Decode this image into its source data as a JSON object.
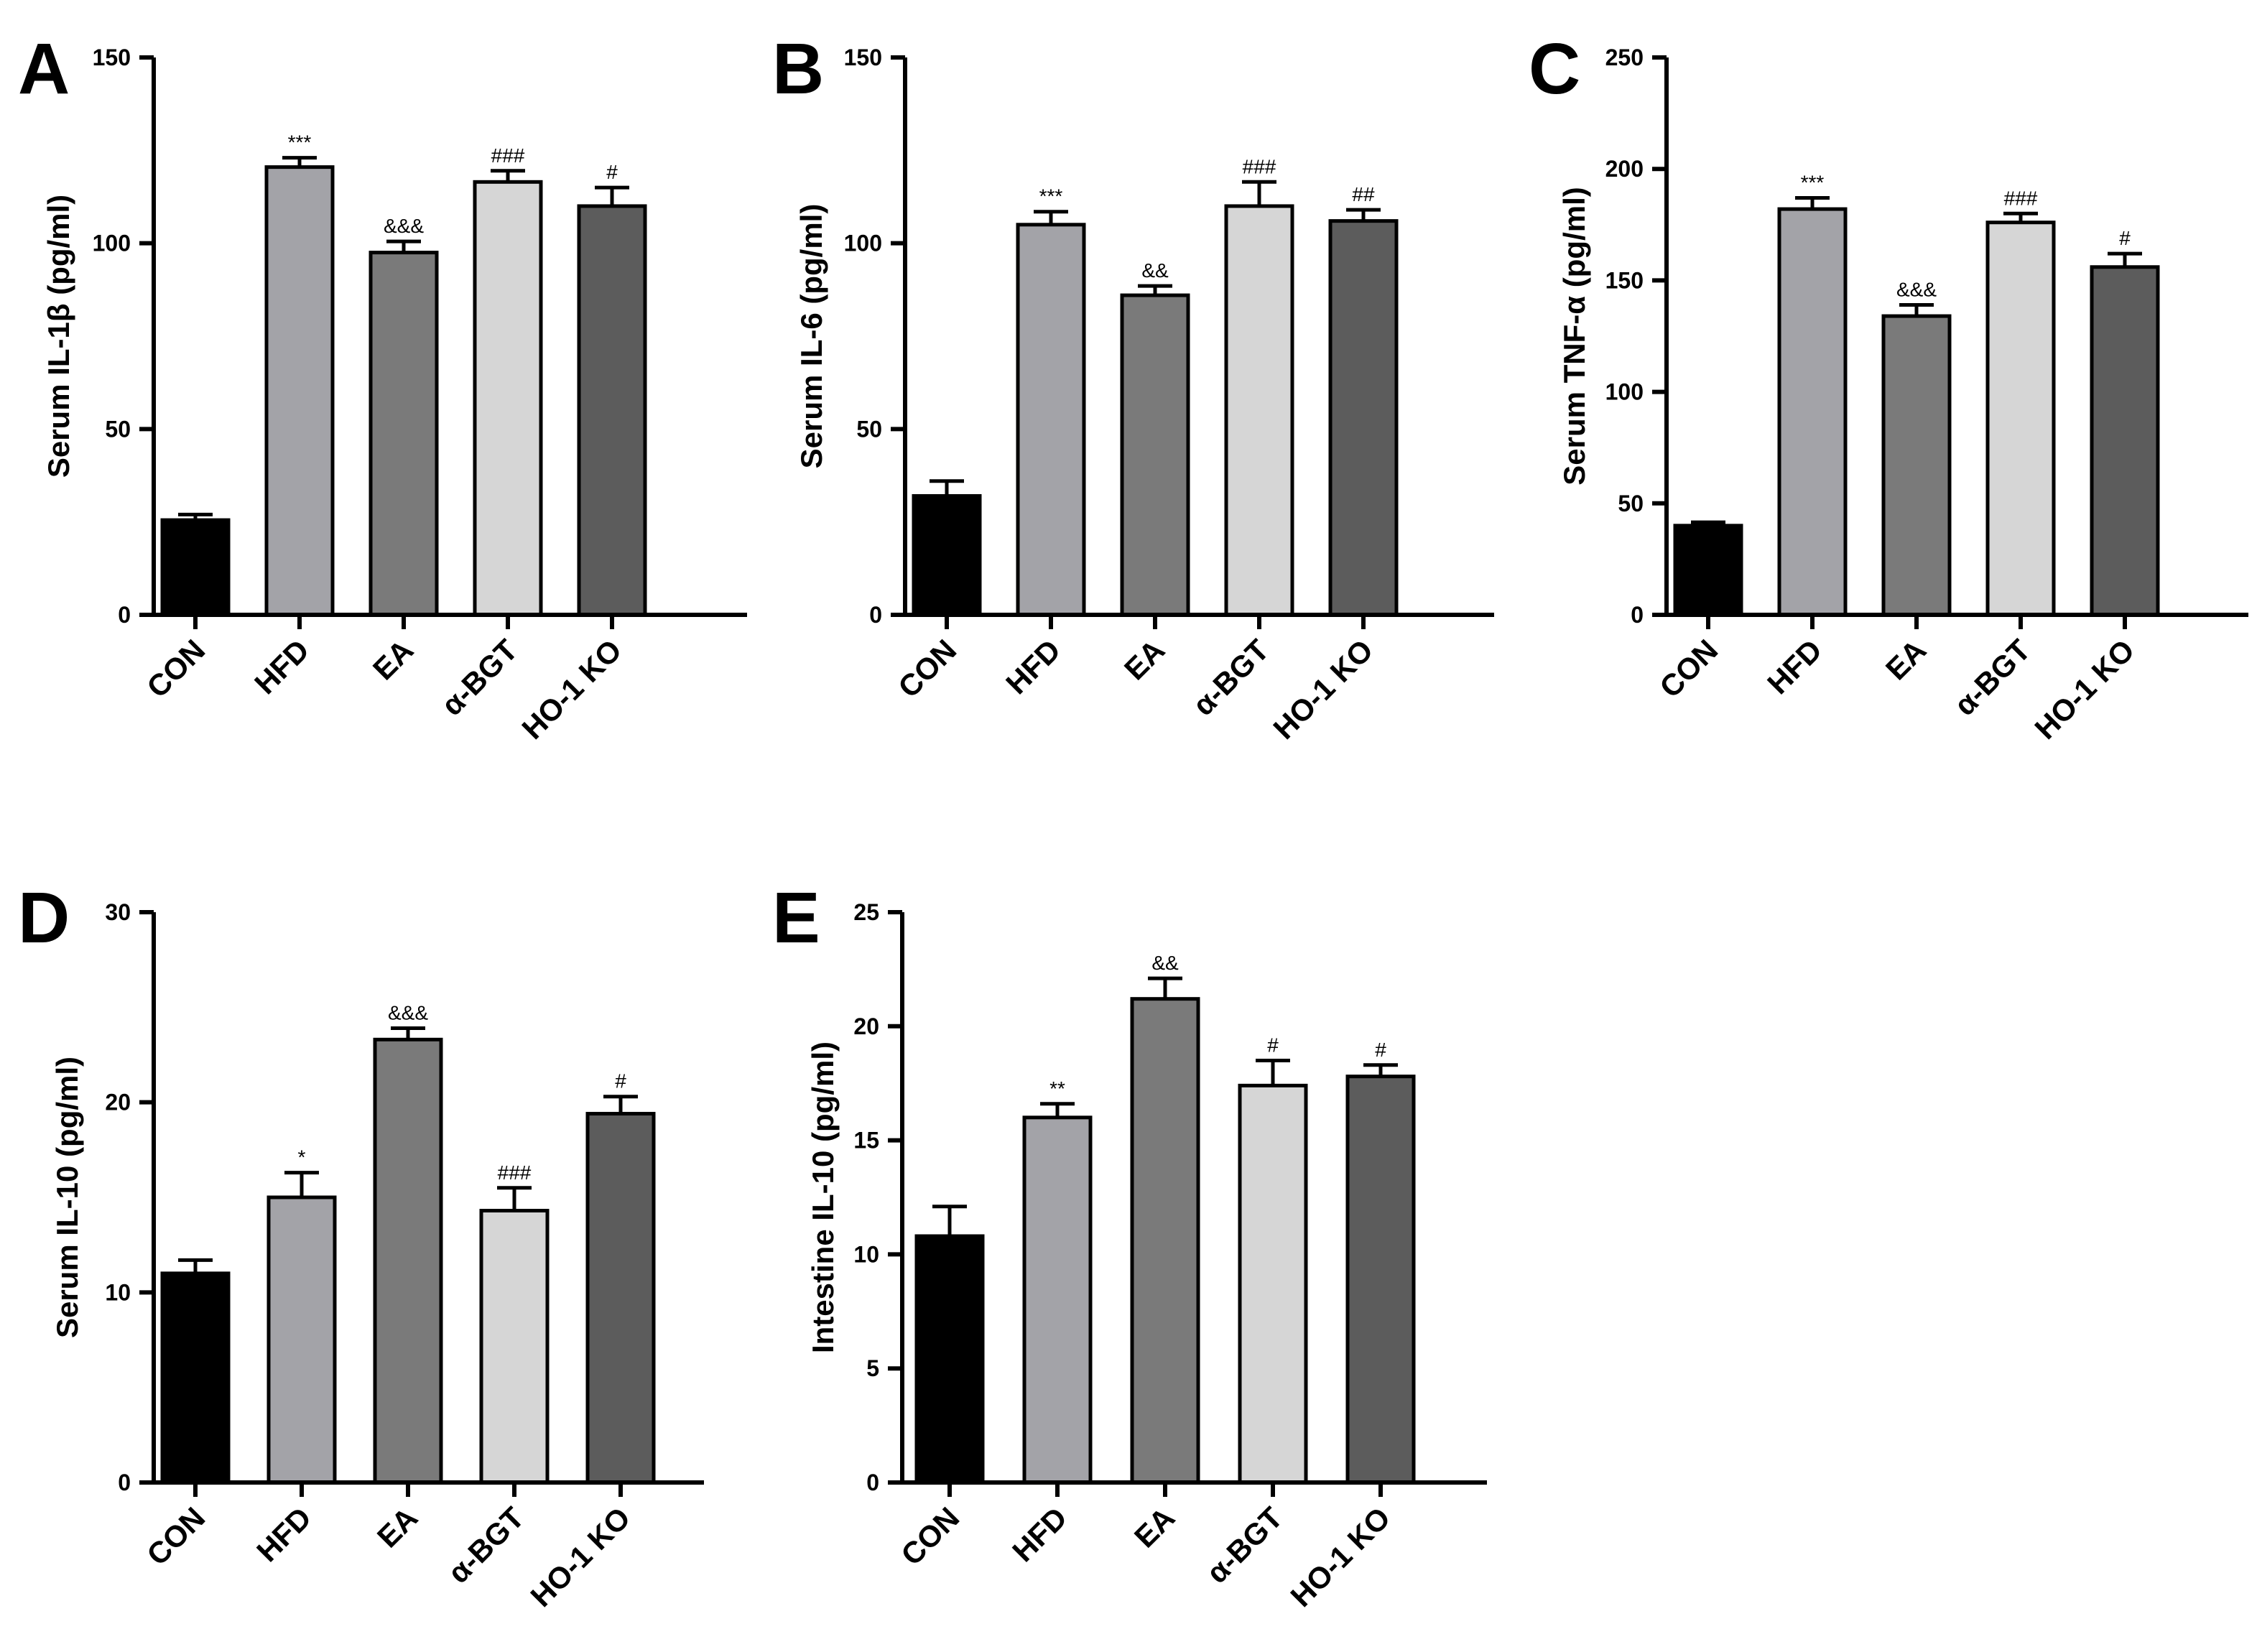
{
  "chart_data": [
    {
      "panel": "A",
      "type": "bar",
      "ylabel": "Serum IL-1β (pg/ml)",
      "ylim": [
        0,
        150
      ],
      "yticks": [
        0,
        50,
        100,
        150
      ],
      "categories": [
        "CON",
        "HFD",
        "EA",
        "α-BGT",
        "HO-1 KO"
      ],
      "values": [
        25.5,
        120.5,
        97.5,
        116.5,
        110.0
      ],
      "errors": [
        1.5,
        2.5,
        3.0,
        3.0,
        5.0
      ],
      "annotations": [
        "",
        "***",
        "&&&",
        "###",
        "#"
      ],
      "colors": [
        "#000000",
        "#a3a3a8",
        "#7a7a7a",
        "#d6d6d6",
        "#5c5c5c"
      ]
    },
    {
      "panel": "B",
      "type": "bar",
      "ylabel": "Serum IL-6 (pg/ml)",
      "ylim": [
        0,
        150
      ],
      "yticks": [
        0,
        50,
        100,
        150
      ],
      "categories": [
        "CON",
        "HFD",
        "EA",
        "α-BGT",
        "HO-1 KO"
      ],
      "values": [
        32.0,
        105.0,
        86.0,
        110.0,
        106.0
      ],
      "errors": [
        4.0,
        3.5,
        2.5,
        6.5,
        3.0
      ],
      "annotations": [
        "",
        "***",
        "&&",
        "###",
        "##"
      ],
      "colors": [
        "#000000",
        "#a3a3a8",
        "#7a7a7a",
        "#d6d6d6",
        "#5c5c5c"
      ]
    },
    {
      "panel": "C",
      "type": "bar",
      "ylabel": "Serum TNF-α (pg/ml)",
      "ylim": [
        0,
        250
      ],
      "yticks": [
        0,
        50,
        100,
        150,
        200,
        250
      ],
      "categories": [
        "CON",
        "HFD",
        "EA",
        "α-BGT",
        "HO-1 KO"
      ],
      "values": [
        40.0,
        182.0,
        134.0,
        176.0,
        156.0
      ],
      "errors": [
        1.5,
        5.0,
        5.0,
        4.0,
        6.0
      ],
      "annotations": [
        "",
        "***",
        "&&&",
        "###",
        "#"
      ],
      "colors": [
        "#000000",
        "#a3a3a8",
        "#7a7a7a",
        "#d6d6d6",
        "#5c5c5c"
      ]
    },
    {
      "panel": "D",
      "type": "bar",
      "ylabel": "Serum IL-10 (pg/ml)",
      "ylim": [
        0,
        30
      ],
      "yticks": [
        0,
        10,
        20,
        30
      ],
      "categories": [
        "CON",
        "HFD",
        "EA",
        "α-BGT",
        "HO-1 KO"
      ],
      "values": [
        11.0,
        15.0,
        23.3,
        14.3,
        19.4
      ],
      "errors": [
        0.7,
        1.3,
        0.6,
        1.2,
        0.9
      ],
      "annotations": [
        "",
        "*",
        "&&&",
        "###",
        "#"
      ],
      "colors": [
        "#000000",
        "#a3a3a8",
        "#7a7a7a",
        "#d6d6d6",
        "#5c5c5c"
      ]
    },
    {
      "panel": "E",
      "type": "bar",
      "ylabel": "Intestine IL-10 (pg/ml)",
      "ylim": [
        0,
        25
      ],
      "yticks": [
        0,
        5,
        10,
        15,
        20,
        25
      ],
      "categories": [
        "CON",
        "HFD",
        "EA",
        "α-BGT",
        "HO-1 KO"
      ],
      "values": [
        10.8,
        16.0,
        21.2,
        17.4,
        17.8
      ],
      "errors": [
        1.3,
        0.6,
        0.9,
        1.1,
        0.5
      ],
      "annotations": [
        "",
        "**",
        "&&",
        "#",
        "#"
      ],
      "colors": [
        "#000000",
        "#a3a3a8",
        "#7a7a7a",
        "#d6d6d6",
        "#5c5c5c"
      ]
    }
  ]
}
